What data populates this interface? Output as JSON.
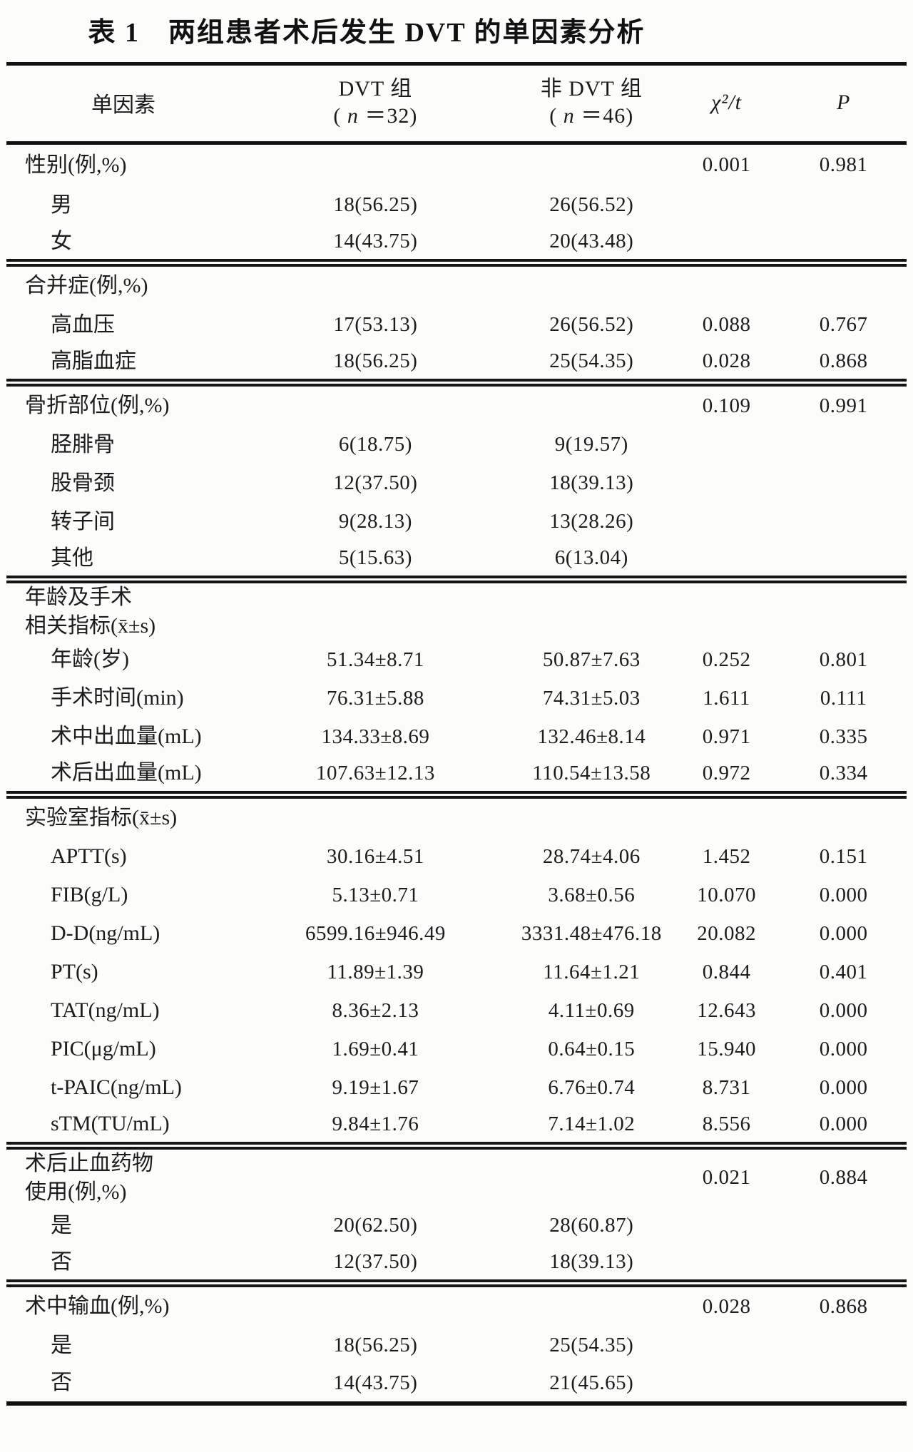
{
  "page": {
    "title": "表 1　两组患者术后发生 DVT 的单因素分析"
  },
  "table": {
    "header": {
      "factor": "单因素",
      "dvt_line1": "DVT 组",
      "dvt_pre": "( ",
      "dvt_n": "n",
      "dvt_post": " ＝32)",
      "ndvt_line1": "非 DVT 组",
      "ndvt_pre": "( ",
      "ndvt_n": "n",
      "ndvt_post": " ＝46)",
      "stat": "χ²/t",
      "p": "P"
    },
    "sections": [
      {
        "name": "gender",
        "rows": [
          {
            "label": "性别(例,%)",
            "indent": false,
            "dvt": "",
            "ndvt": "",
            "stat": "0.001",
            "p": "0.981"
          },
          {
            "label": "男",
            "indent": true,
            "dvt": "18(56.25)",
            "ndvt": "26(56.52)",
            "stat": "",
            "p": ""
          },
          {
            "label": "女",
            "indent": true,
            "dvt": "14(43.75)",
            "ndvt": "20(43.48)",
            "stat": "",
            "p": ""
          }
        ]
      },
      {
        "name": "comorbidity",
        "rows": [
          {
            "label": "合并症(例,%)",
            "indent": false,
            "dvt": "",
            "ndvt": "",
            "stat": "",
            "p": ""
          },
          {
            "label": "高血压",
            "indent": true,
            "dvt": "17(53.13)",
            "ndvt": "26(56.52)",
            "stat": "0.088",
            "p": "0.767"
          },
          {
            "label": "高脂血症",
            "indent": true,
            "dvt": "18(56.25)",
            "ndvt": "25(54.35)",
            "stat": "0.028",
            "p": "0.868"
          }
        ]
      },
      {
        "name": "fracture-site",
        "rows": [
          {
            "label": "骨折部位(例,%)",
            "indent": false,
            "dvt": "",
            "ndvt": "",
            "stat": "0.109",
            "p": "0.991"
          },
          {
            "label": "胫腓骨",
            "indent": true,
            "dvt": "6(18.75)",
            "ndvt": "9(19.57)",
            "stat": "",
            "p": ""
          },
          {
            "label": "股骨颈",
            "indent": true,
            "dvt": "12(37.50)",
            "ndvt": "18(39.13)",
            "stat": "",
            "p": ""
          },
          {
            "label": "转子间",
            "indent": true,
            "dvt": "9(28.13)",
            "ndvt": "13(28.26)",
            "stat": "",
            "p": ""
          },
          {
            "label": "其他",
            "indent": true,
            "dvt": "5(15.63)",
            "ndvt": "6(13.04)",
            "stat": "",
            "p": ""
          }
        ]
      },
      {
        "name": "age-surgery-indicators",
        "rows": [
          {
            "label": "年龄及手术\n相关指标(x̄±s)",
            "indent": false,
            "dvt": "",
            "ndvt": "",
            "stat": "",
            "p": ""
          },
          {
            "label": "年龄(岁)",
            "indent": true,
            "dvt": "51.34±8.71",
            "ndvt": "50.87±7.63",
            "stat": "0.252",
            "p": "0.801"
          },
          {
            "label": "手术时间(min)",
            "indent": true,
            "dvt": "76.31±5.88",
            "ndvt": "74.31±5.03",
            "stat": "1.611",
            "p": "0.111"
          },
          {
            "label": "术中出血量(mL)",
            "indent": true,
            "dvt": "134.33±8.69",
            "ndvt": "132.46±8.14",
            "stat": "0.971",
            "p": "0.335"
          },
          {
            "label": "术后出血量(mL)",
            "indent": true,
            "dvt": "107.63±12.13",
            "ndvt": "110.54±13.58",
            "stat": "0.972",
            "p": "0.334"
          }
        ]
      },
      {
        "name": "laboratory-indicators",
        "rows": [
          {
            "label": "实验室指标(x̄±s)",
            "indent": false,
            "dvt": "",
            "ndvt": "",
            "stat": "",
            "p": ""
          },
          {
            "label": "APTT(s)",
            "indent": true,
            "dvt": "30.16±4.51",
            "ndvt": "28.74±4.06",
            "stat": "1.452",
            "p": "0.151"
          },
          {
            "label": "FIB(g/L)",
            "indent": true,
            "dvt": "5.13±0.71",
            "ndvt": "3.68±0.56",
            "stat": "10.070",
            "p": "0.000"
          },
          {
            "label": "D-D(ng/mL)",
            "indent": true,
            "dvt": "6599.16±946.49",
            "ndvt": "3331.48±476.18",
            "stat": "20.082",
            "p": "0.000"
          },
          {
            "label": "PT(s)",
            "indent": true,
            "dvt": "11.89±1.39",
            "ndvt": "11.64±1.21",
            "stat": "0.844",
            "p": "0.401"
          },
          {
            "label": "TAT(ng/mL)",
            "indent": true,
            "dvt": "8.36±2.13",
            "ndvt": "4.11±0.69",
            "stat": "12.643",
            "p": "0.000"
          },
          {
            "label": "PIC(μg/mL)",
            "indent": true,
            "dvt": "1.69±0.41",
            "ndvt": "0.64±0.15",
            "stat": "15.940",
            "p": "0.000"
          },
          {
            "label": "t-PAIC(ng/mL)",
            "indent": true,
            "dvt": "9.19±1.67",
            "ndvt": "6.76±0.74",
            "stat": "8.731",
            "p": "0.000"
          },
          {
            "label": "sTM(TU/mL)",
            "indent": true,
            "dvt": "9.84±1.76",
            "ndvt": "7.14±1.02",
            "stat": "8.556",
            "p": "0.000"
          }
        ]
      },
      {
        "name": "postop-hemostatic-drug",
        "rows": [
          {
            "label": "术后止血药物\n使用(例,%)",
            "indent": false,
            "dvt": "",
            "ndvt": "",
            "stat": "0.021",
            "p": "0.884"
          },
          {
            "label": "是",
            "indent": true,
            "dvt": "20(62.50)",
            "ndvt": "28(60.87)",
            "stat": "",
            "p": ""
          },
          {
            "label": "否",
            "indent": true,
            "dvt": "12(37.50)",
            "ndvt": "18(39.13)",
            "stat": "",
            "p": ""
          }
        ]
      },
      {
        "name": "intraop-transfusion",
        "rows": [
          {
            "label": "术中输血(例,%)",
            "indent": false,
            "dvt": "",
            "ndvt": "",
            "stat": "0.028",
            "p": "0.868"
          },
          {
            "label": "是",
            "indent": true,
            "dvt": "18(56.25)",
            "ndvt": "25(54.35)",
            "stat": "",
            "p": ""
          },
          {
            "label": "否",
            "indent": true,
            "dvt": "14(43.75)",
            "ndvt": "21(45.65)",
            "stat": "",
            "p": ""
          }
        ]
      }
    ]
  }
}
